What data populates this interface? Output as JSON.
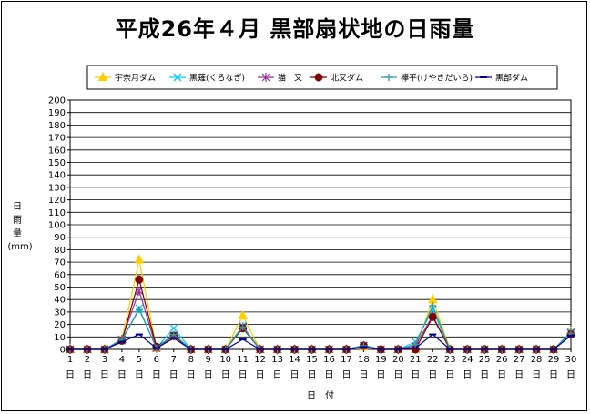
{
  "chart_data": {
    "type": "line",
    "title": "平成26年４月 黒部扇状地の日雨量",
    "xlabel": "日　付",
    "ylabel_chars": [
      "日",
      "雨",
      "量"
    ],
    "ylabel_unit": "(mm)",
    "ylim": [
      0,
      200
    ],
    "y_ticks": [
      0,
      10,
      20,
      30,
      40,
      50,
      60,
      70,
      80,
      90,
      100,
      110,
      120,
      130,
      140,
      150,
      160,
      170,
      180,
      190,
      200
    ],
    "grid": true,
    "legend_position": "top",
    "categories": [
      "1",
      "2",
      "3",
      "4",
      "5",
      "6",
      "7",
      "8",
      "9",
      "10",
      "11",
      "12",
      "13",
      "14",
      "15",
      "16",
      "17",
      "18",
      "19",
      "20",
      "21",
      "22",
      "23",
      "24",
      "25",
      "26",
      "27",
      "28",
      "29",
      "30"
    ],
    "category_suffix": "日",
    "series": [
      {
        "name": "宇奈月ダム",
        "color": "#FFCC00",
        "marker": "triangle",
        "values": [
          0,
          0,
          0,
          8,
          72,
          1,
          10,
          0,
          0,
          0,
          27,
          0,
          0,
          0,
          0,
          0,
          0,
          2,
          0,
          0,
          0,
          40,
          0,
          0,
          0,
          0,
          0,
          0,
          0,
          14
        ]
      },
      {
        "name": "黒薙(くろなぎ)",
        "color": "#00CCFF",
        "marker": "x",
        "values": [
          0,
          0,
          0,
          7,
          33,
          1,
          17,
          0,
          0,
          0,
          19,
          0,
          0,
          0,
          0,
          0,
          0,
          3,
          0,
          0,
          6,
          32,
          0,
          0,
          0,
          0,
          0,
          0,
          0,
          14
        ]
      },
      {
        "name": "猫　又",
        "color": "#993399",
        "marker": "star",
        "values": [
          0,
          0,
          0,
          8,
          47,
          1,
          11,
          0,
          0,
          0,
          18,
          0,
          0,
          0,
          0,
          0,
          0,
          3,
          0,
          0,
          3,
          27,
          0,
          0,
          0,
          0,
          0,
          0,
          0,
          13
        ]
      },
      {
        "name": "北又ダム",
        "color": "#800000",
        "marker": "circle",
        "values": [
          0,
          0,
          0,
          7,
          56,
          2,
          11,
          0,
          0,
          0,
          17,
          0,
          0,
          0,
          0,
          0,
          0,
          3,
          0,
          0,
          0,
          26,
          0,
          0,
          0,
          0,
          0,
          0,
          0,
          12
        ]
      },
      {
        "name": "欅平(けやきだいら)",
        "color": "#339999",
        "marker": "plus",
        "values": [
          0,
          0,
          0,
          8,
          32,
          1,
          12,
          0,
          0,
          0,
          18,
          0,
          0,
          0,
          0,
          0,
          0,
          3,
          0,
          0,
          4,
          35,
          0,
          0,
          0,
          0,
          0,
          0,
          0,
          13
        ]
      },
      {
        "name": "黒部ダム",
        "color": "#000099",
        "marker": "dash",
        "values": [
          0,
          0,
          0,
          6,
          12,
          1,
          9,
          0,
          0,
          0,
          8,
          0,
          0,
          0,
          0,
          0,
          0,
          2,
          0,
          0,
          1,
          12,
          0,
          0,
          0,
          0,
          0,
          0,
          0,
          11
        ]
      }
    ]
  }
}
